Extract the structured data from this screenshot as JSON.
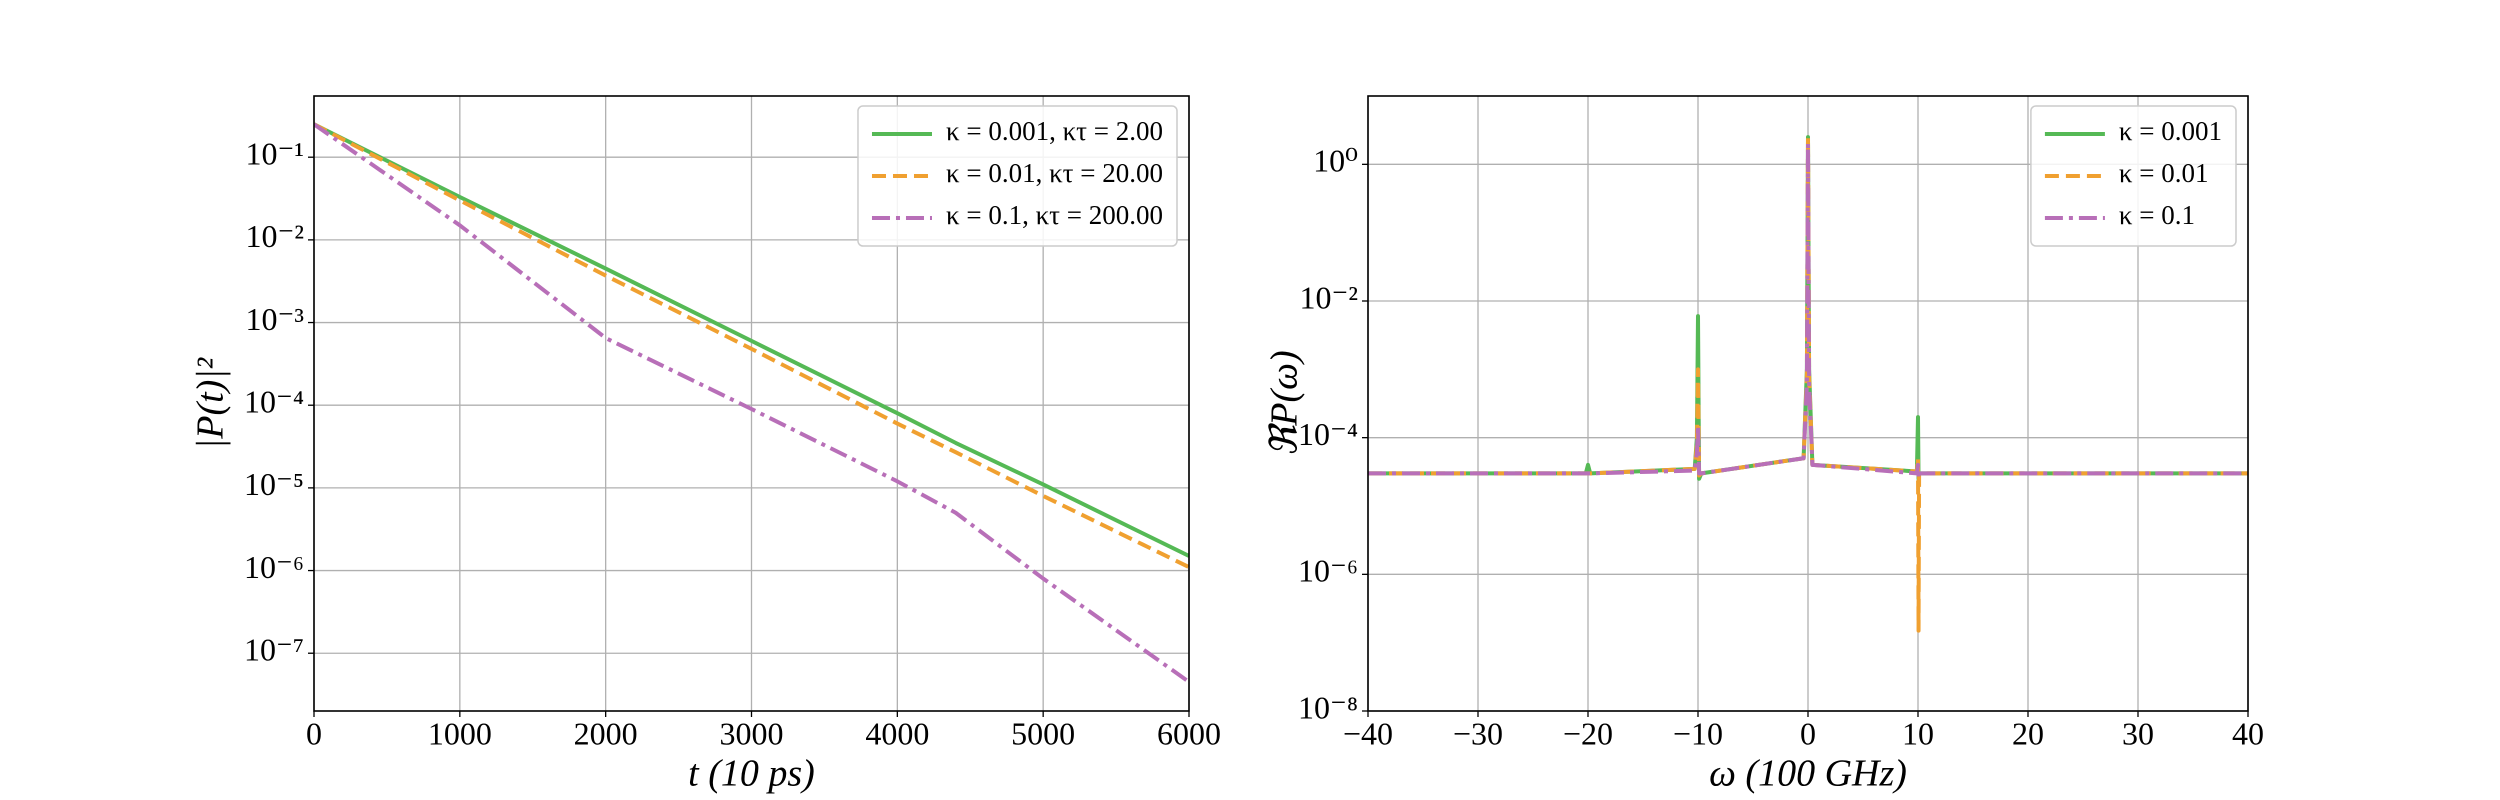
{
  "chart_data": [
    {
      "type": "line",
      "xlabel": "t (10 ps)",
      "ylabel": "|P(t)|²",
      "x": [
        0,
        1000,
        2000,
        3000,
        4000,
        4400,
        5000,
        6000
      ],
      "series": [
        {
          "name": "κ = 0.001, κτ = 2.00",
          "color": "#55b955",
          "dash": "solid",
          "values": [
            0.25,
            0.033,
            0.0045,
            0.0006,
            8e-05,
            3.5e-05,
            1.1e-05,
            1.5e-06
          ]
        },
        {
          "name": "κ = 0.01, κτ = 20.00",
          "color": "#f0a030",
          "dash": "dashed",
          "values": [
            0.25,
            0.03,
            0.0037,
            0.00048,
            6e-05,
            2.7e-05,
            8e-06,
            1.1e-06
          ]
        },
        {
          "name": "κ = 0.1, κτ = 200.00",
          "color": "#b86fb8",
          "dash": "dashdot",
          "values": [
            0.25,
            0.015,
            0.00065,
            9e-05,
            1.2e-05,
            5e-06,
            8e-07,
            4.5e-08
          ]
        }
      ],
      "xlim": [
        0,
        6000
      ],
      "ylim": [
        2e-08,
        0.55
      ],
      "ylog": true,
      "xticks": [
        0,
        1000,
        2000,
        3000,
        4000,
        5000,
        6000
      ],
      "yticks": [
        {
          "value": 0.1,
          "label": "10⁻¹"
        },
        {
          "value": 0.01,
          "label": "10⁻²"
        },
        {
          "value": 0.001,
          "label": "10⁻³"
        },
        {
          "value": 0.0001,
          "label": "10⁻⁴"
        },
        {
          "value": 1e-05,
          "label": "10⁻⁵"
        },
        {
          "value": 1e-06,
          "label": "10⁻⁶"
        },
        {
          "value": 1e-07,
          "label": "10⁻⁷"
        }
      ],
      "grid": true,
      "legend": "upper right"
    },
    {
      "type": "line",
      "xlabel": "ω (100 GHz)",
      "ylabel": "ℜP(ω)",
      "x": [
        -40,
        -20.2,
        -20,
        -19.8,
        -10.3,
        -10.1,
        -10,
        -9.9,
        -9.7,
        -0.4,
        -0.1,
        0,
        0.1,
        0.4,
        9.9,
        10,
        10.05,
        10.1,
        10.3,
        40
      ],
      "series": [
        {
          "name": "κ = 0.001",
          "color": "#55b955",
          "dash": "solid",
          "values": [
            3e-05,
            3e-05,
            4e-05,
            3e-05,
            3.5e-05,
            0.0001,
            0.006,
            2.5e-05,
            3e-05,
            5e-05,
            0.001,
            2.5,
            0.001,
            4e-05,
            3.2e-05,
            0.0002,
            2.5e-05,
            3e-05,
            3e-05,
            3e-05
          ]
        },
        {
          "name": "κ = 0.01",
          "color": "#f0a030",
          "dash": "dashed",
          "values": [
            3e-05,
            3e-05,
            3e-05,
            3e-05,
            3.5e-05,
            8e-05,
            0.001,
            2.8e-05,
            3e-05,
            5e-05,
            0.0008,
            2.5,
            0.0008,
            4e-05,
            3.2e-05,
            5e-05,
            1.5e-07,
            3e-05,
            3e-05,
            3e-05
          ]
        },
        {
          "name": "κ = 0.1",
          "color": "#b86fb8",
          "dash": "dashdot",
          "values": [
            3e-05,
            3e-05,
            3e-05,
            3e-05,
            3.3e-05,
            6e-05,
            0.00015,
            3e-05,
            3e-05,
            5e-05,
            0.0006,
            2,
            0.0006,
            4e-05,
            3e-05,
            4e-05,
            2.5e-05,
            3e-05,
            3e-05,
            3e-05
          ]
        }
      ],
      "xlim": [
        -40,
        40
      ],
      "ylim": [
        1e-08,
        10
      ],
      "ylog": true,
      "xticks": [
        {
          "value": -40,
          "label": "−40"
        },
        {
          "value": -30,
          "label": "−30"
        },
        {
          "value": -20,
          "label": "−20"
        },
        {
          "value": -10,
          "label": "−10"
        },
        0,
        10,
        20,
        30,
        40
      ],
      "yticks": [
        {
          "value": 1e-08,
          "label": "10⁻⁸"
        },
        {
          "value": 1e-06,
          "label": "10⁻⁶"
        },
        {
          "value": 0.0001,
          "label": "10⁻⁴"
        },
        {
          "value": 0.01,
          "label": "10⁻²"
        },
        {
          "value": 1,
          "label": "10⁰"
        }
      ],
      "grid": true,
      "legend": "upper right"
    }
  ]
}
